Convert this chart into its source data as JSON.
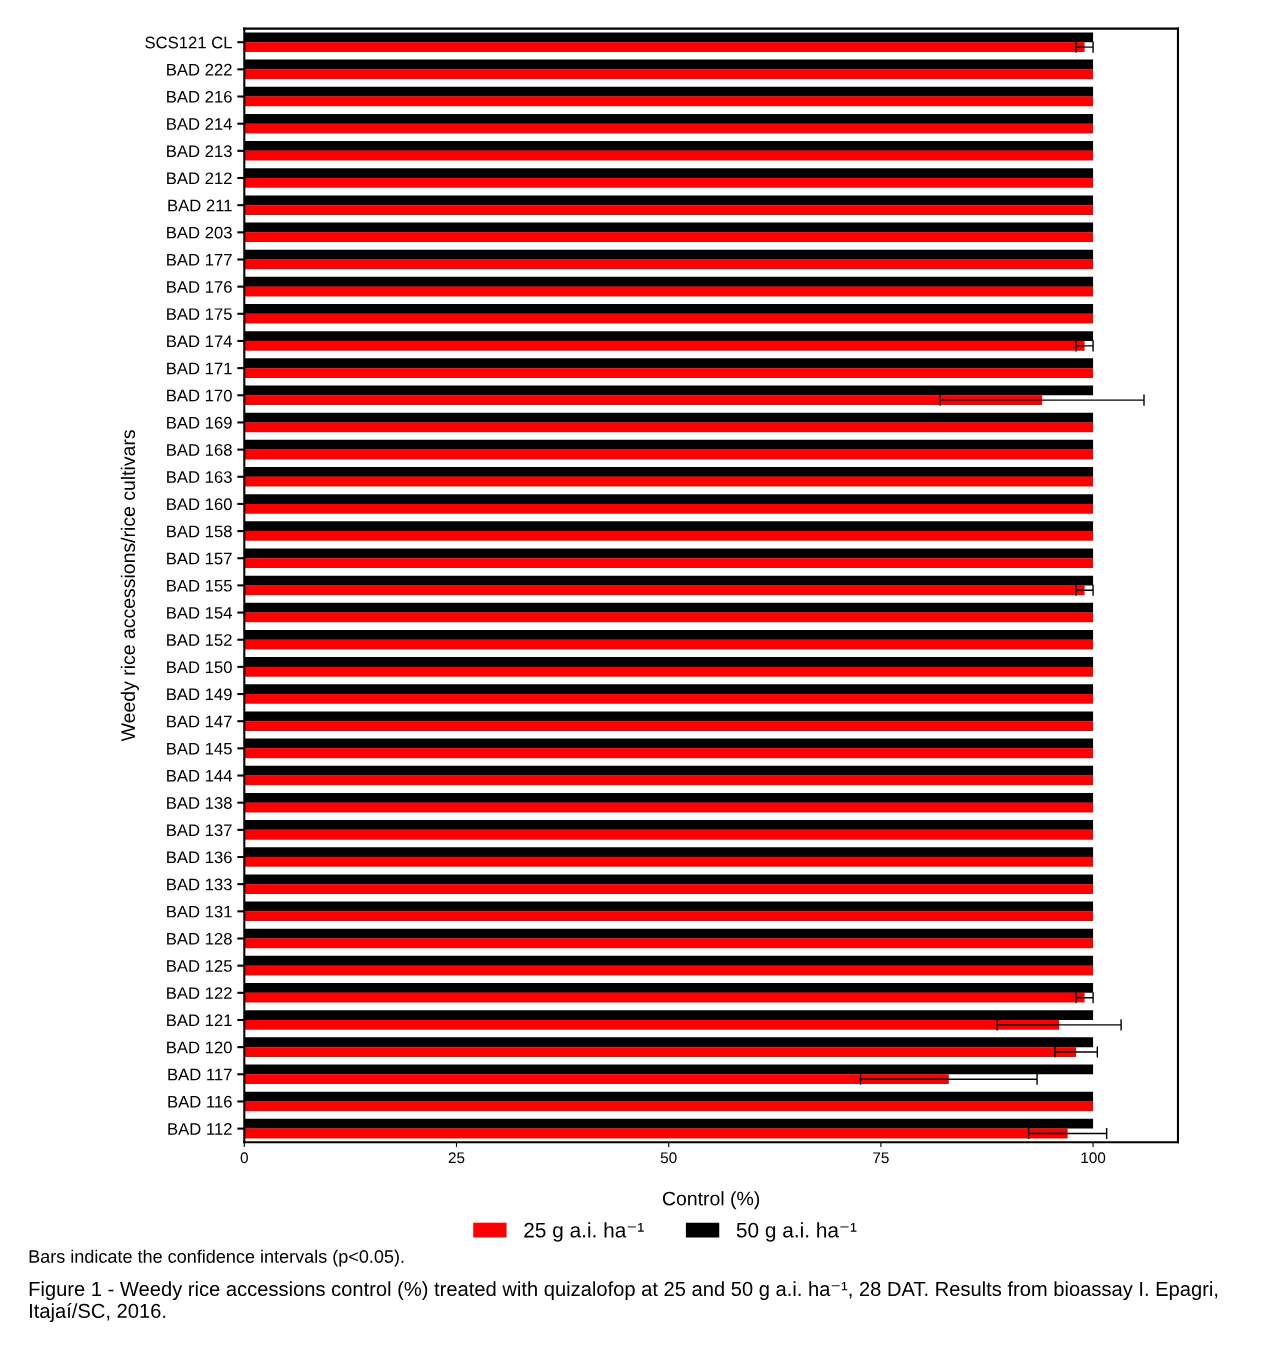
{
  "chart_data": {
    "type": "bar",
    "orientation": "horizontal",
    "xlabel": "Control (%)",
    "ylabel": "Weedy rice accessions/rice cultivars",
    "categories": [
      "SCS121 CL",
      "BAD 222",
      "BAD 216",
      "BAD 214",
      "BAD 213",
      "BAD 212",
      "BAD 211",
      "BAD 203",
      "BAD 177",
      "BAD 176",
      "BAD 175",
      "BAD 174",
      "BAD 171",
      "BAD 170",
      "BAD 169",
      "BAD 168",
      "BAD 163",
      "BAD 160",
      "BAD 158",
      "BAD 157",
      "BAD 155",
      "BAD 154",
      "BAD 152",
      "BAD 150",
      "BAD 149",
      "BAD 147",
      "BAD 145",
      "BAD 144",
      "BAD 138",
      "BAD 137",
      "BAD 136",
      "BAD 133",
      "BAD 131",
      "BAD 128",
      "BAD 125",
      "BAD 122",
      "BAD 121",
      "BAD 120",
      "BAD 117",
      "BAD 116",
      "BAD 112"
    ],
    "series": [
      {
        "name": "25 g a.i. ha⁻¹",
        "color": "#ff0000",
        "values": [
          99,
          100,
          100,
          100,
          100,
          100,
          100,
          100,
          100,
          100,
          100,
          99,
          100,
          94,
          100,
          100,
          100,
          100,
          100,
          100,
          99,
          100,
          100,
          100,
          100,
          100,
          100,
          100,
          100,
          100,
          100,
          100,
          100,
          100,
          100,
          99,
          96,
          98,
          83,
          100,
          97
        ],
        "errors": [
          1,
          null,
          null,
          null,
          null,
          null,
          null,
          null,
          null,
          null,
          null,
          1,
          null,
          12,
          null,
          null,
          null,
          null,
          null,
          null,
          1,
          null,
          null,
          null,
          null,
          null,
          null,
          null,
          null,
          null,
          null,
          null,
          null,
          null,
          null,
          1,
          7.3,
          2.5,
          10.4,
          null,
          4.6
        ]
      },
      {
        "name": "50 g a.i. ha⁻¹",
        "color": "#000000",
        "values": [
          100,
          100,
          100,
          100,
          100,
          100,
          100,
          100,
          100,
          100,
          100,
          100,
          100,
          100,
          100,
          100,
          100,
          100,
          100,
          100,
          100,
          100,
          100,
          100,
          100,
          100,
          100,
          100,
          100,
          100,
          100,
          100,
          100,
          100,
          100,
          100,
          100,
          100,
          100,
          100,
          100
        ]
      }
    ],
    "xlim": [
      0,
      110
    ],
    "xticks": [
      0,
      25,
      50,
      75,
      100
    ],
    "grid": false,
    "legend": "bottom",
    "annotations": [
      "Bars indicate the confidence intervals (p<0.05).",
      "Figure 1 - Weedy rice accessions control (%) treated with quizalofop at 25 and 50 g a.i. ha⁻¹, 28 DAT. Results from bioassay I. Epagri, Itajaí/SC, 2016."
    ]
  }
}
